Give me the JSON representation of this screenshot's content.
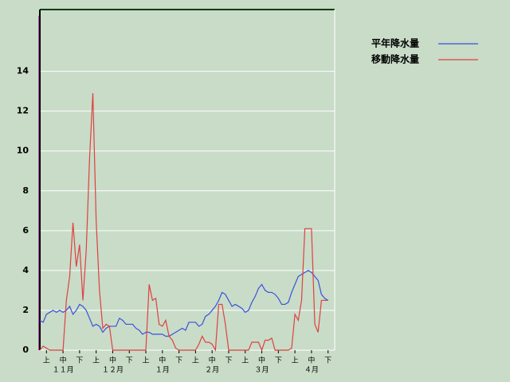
{
  "chart_data": {
    "type": "line",
    "categories": [
      null,
      null,
      "上",
      null,
      null,
      null,
      null,
      "中",
      null,
      null,
      null,
      null,
      "下",
      null,
      null,
      null,
      null,
      "上",
      null,
      null,
      null,
      null,
      "中",
      null,
      null,
      null,
      null,
      "下",
      null,
      null,
      null,
      null,
      "上",
      null,
      null,
      null,
      null,
      "中",
      null,
      null,
      null,
      null,
      "下",
      null,
      null,
      null,
      null,
      "上",
      null,
      null,
      null,
      null,
      "中",
      null,
      null,
      null,
      null,
      "下",
      null,
      null,
      null,
      null,
      "上",
      null,
      null,
      null,
      null,
      "中",
      null,
      null,
      null,
      null,
      "下",
      null,
      null,
      null,
      null,
      "上",
      null,
      null,
      null,
      null,
      "中",
      null,
      null,
      null,
      null,
      "下",
      null,
      null
    ],
    "months": [
      "１１月",
      "１２月",
      "１月",
      "２月",
      "３月",
      "４月"
    ],
    "series": [
      {
        "name": "平年降水量",
        "color": "#3c50dc",
        "values": [
          1.5,
          1.4,
          1.8,
          1.9,
          2.0,
          1.9,
          2.0,
          1.9,
          2.0,
          2.2,
          1.8,
          2.0,
          2.3,
          2.2,
          2.0,
          1.6,
          1.2,
          1.3,
          1.2,
          0.9,
          1.1,
          1.2,
          1.2,
          1.2,
          1.6,
          1.5,
          1.3,
          1.3,
          1.3,
          1.1,
          1.0,
          0.8,
          0.9,
          0.9,
          0.8,
          0.8,
          0.8,
          0.8,
          0.7,
          0.7,
          0.8,
          0.9,
          1.0,
          1.1,
          1.0,
          1.4,
          1.4,
          1.4,
          1.2,
          1.3,
          1.7,
          1.8,
          2.0,
          2.2,
          2.5,
          2.9,
          2.8,
          2.5,
          2.2,
          2.3,
          2.2,
          2.1,
          1.9,
          2.0,
          2.4,
          2.7,
          3.1,
          3.3,
          3.0,
          2.9,
          2.9,
          2.8,
          2.6,
          2.3,
          2.3,
          2.4,
          2.9,
          3.3,
          3.7,
          3.8,
          3.9,
          4.0,
          3.9,
          3.7,
          3.5,
          2.8,
          2.6,
          2.5,
          null,
          null
        ]
      },
      {
        "name": "移動降水量",
        "color": "#e04040",
        "values": [
          0,
          0.2,
          0.1,
          0,
          0,
          0,
          0,
          0,
          2.5,
          3.7,
          6.4,
          4.2,
          5.3,
          2.5,
          5.0,
          9.6,
          12.9,
          6.5,
          3.0,
          1.1,
          1.3,
          1.2,
          0,
          0,
          0,
          0,
          0,
          0,
          0,
          0,
          0,
          0,
          0,
          3.3,
          2.5,
          2.6,
          1.3,
          1.2,
          1.5,
          0.7,
          0.5,
          0.1,
          0,
          0,
          0,
          0,
          0,
          0,
          0.3,
          0.7,
          0.4,
          0.4,
          0.3,
          0,
          2.3,
          2.3,
          1.3,
          0,
          0,
          0,
          0,
          0,
          0,
          0,
          0.4,
          0.4,
          0.4,
          0,
          0.5,
          0.5,
          0.6,
          0,
          0,
          0,
          0,
          0,
          0.1,
          1.8,
          1.5,
          2.5,
          6.1,
          6.1,
          6.1,
          1.3,
          0.9,
          2.5,
          2.5,
          2.5,
          null,
          null
        ]
      }
    ],
    "ylim": [
      0,
      17.1
    ],
    "yticks": [
      0,
      2,
      4,
      6,
      8,
      10,
      12,
      14
    ],
    "grid": true
  }
}
